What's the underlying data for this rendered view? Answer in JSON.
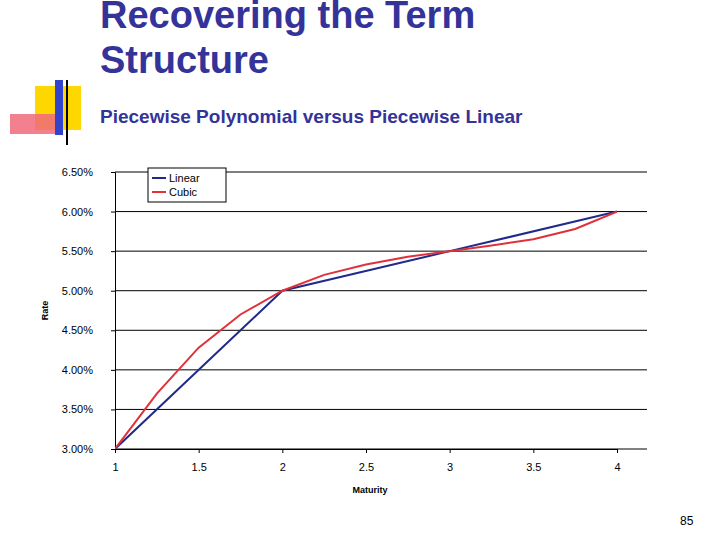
{
  "slide": {
    "title": "Recovering the Term Structure",
    "subtitle": "Piecewise Polynomial versus Piecewise Linear",
    "page_number": 85
  },
  "chart_data": {
    "type": "line",
    "x_label": "Maturity",
    "y_label": "Rate",
    "xlim": [
      1,
      4
    ],
    "xticks": [
      1,
      1.5,
      2,
      2.5,
      3,
      3.5,
      4
    ],
    "ylim": [
      3,
      6.5
    ],
    "yticks": [
      {
        "value": 3,
        "label": "3.00%"
      },
      {
        "value": 3.5,
        "label": "3.50%"
      },
      {
        "value": 4,
        "label": "4.00%"
      },
      {
        "value": 4.5,
        "label": "4.50%"
      },
      {
        "value": 5,
        "label": "5.00%"
      },
      {
        "value": 5.5,
        "label": "5.50%"
      },
      {
        "value": 6,
        "label": "6.00%"
      },
      {
        "value": 6.5,
        "label": "6.50%"
      }
    ],
    "grid": true,
    "legend": "upper left",
    "series": [
      {
        "name": "Linear",
        "color": "#1f2a8a",
        "x": [
          1,
          2,
          3,
          4
        ],
        "values": [
          3.0,
          5.0,
          5.5,
          6.0
        ]
      },
      {
        "name": "Cubic",
        "color": "#e0303a",
        "x": [
          1,
          1.25,
          1.5,
          1.75,
          2,
          2.25,
          2.5,
          2.75,
          3,
          3.25,
          3.5,
          3.75,
          4
        ],
        "values": [
          3.0,
          3.7,
          4.28,
          4.7,
          5.0,
          5.2,
          5.33,
          5.43,
          5.5,
          5.57,
          5.65,
          5.78,
          6.0
        ]
      }
    ]
  }
}
